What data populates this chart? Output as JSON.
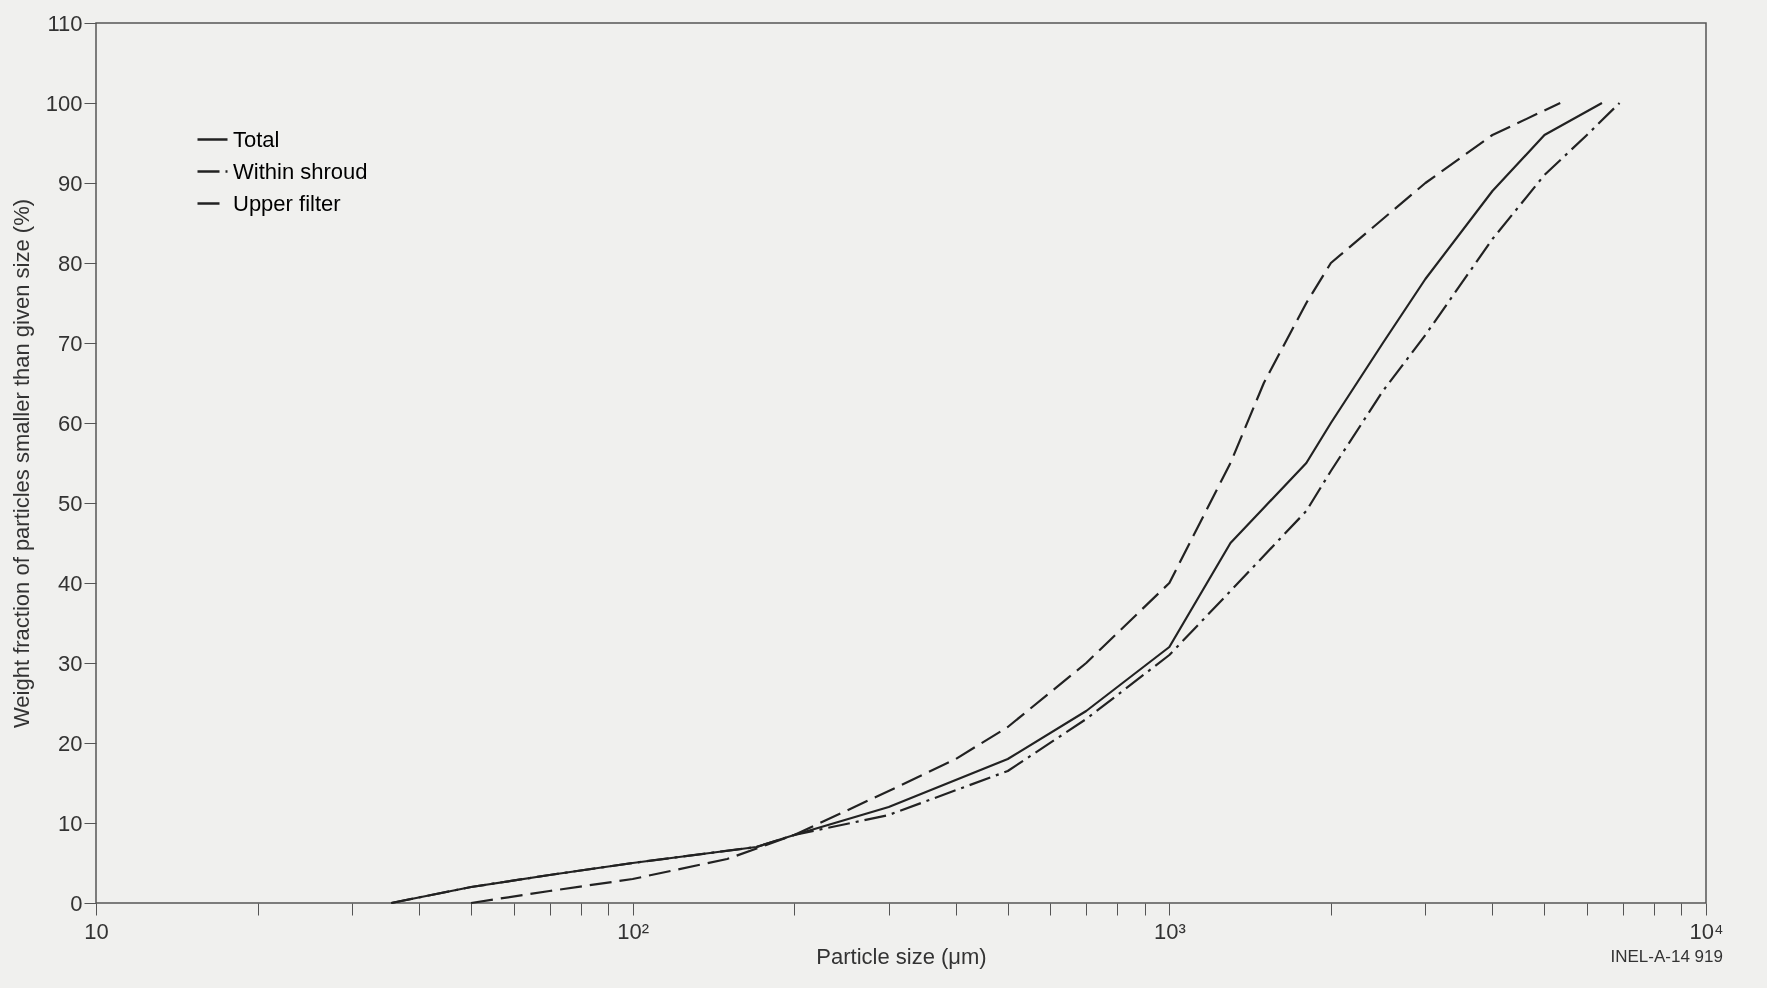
{
  "chart_data": {
    "type": "line",
    "xlabel": "Particle size (μm)",
    "ylabel": "Weight fraction of particles smaller than given size (%)",
    "log": "x",
    "xlim": [
      10,
      10000
    ],
    "ylim": [
      0,
      110
    ],
    "xticks": [
      10,
      {
        "value": 20,
        "label": null
      },
      {
        "value": 30,
        "label": null
      },
      {
        "value": 40,
        "label": null
      },
      {
        "value": 50,
        "label": null
      },
      {
        "value": 60,
        "label": null
      },
      {
        "value": 70,
        "label": null
      },
      {
        "value": 80,
        "label": null
      },
      {
        "value": 90,
        "label": null
      },
      {
        "value": 100,
        "label": "10²"
      },
      {
        "value": 200,
        "label": null
      },
      {
        "value": 300,
        "label": null
      },
      {
        "value": 400,
        "label": null
      },
      {
        "value": 500,
        "label": null
      },
      {
        "value": 600,
        "label": null
      },
      {
        "value": 700,
        "label": null
      },
      {
        "value": 800,
        "label": null
      },
      {
        "value": 900,
        "label": null
      },
      {
        "value": 1000,
        "label": "10³"
      },
      {
        "value": 2000,
        "label": null
      },
      {
        "value": 3000,
        "label": null
      },
      {
        "value": 4000,
        "label": null
      },
      {
        "value": 5000,
        "label": null
      },
      {
        "value": 6000,
        "label": null
      },
      {
        "value": 7000,
        "label": null
      },
      {
        "value": 8000,
        "label": null
      },
      {
        "value": 9000,
        "label": null
      },
      {
        "value": 10000,
        "label": "10⁴"
      }
    ],
    "yticks": [
      0,
      10,
      20,
      30,
      40,
      50,
      60,
      70,
      80,
      90,
      100,
      110
    ],
    "grid": false,
    "legend": "top left",
    "marker": "none",
    "annotations": [
      "INEL-A-14 919"
    ],
    "series": [
      {
        "name": "Total",
        "color": "#222222",
        "line_style": "solid",
        "x": [
          35.5,
          50,
          70,
          100,
          170,
          200,
          300,
          500,
          700,
          1000,
          1300,
          1800,
          2000,
          2500,
          3000,
          4000,
          5000,
          6400
        ],
        "values": [
          0,
          2,
          3.5,
          5,
          7,
          8.5,
          12,
          18,
          24,
          32,
          45,
          55,
          60,
          70,
          78,
          89,
          96,
          100
        ]
      },
      {
        "name": "Within shroud",
        "color": "#222222",
        "line_style": "dashdot",
        "x": [
          35.5,
          50,
          70,
          100,
          170,
          200,
          300,
          500,
          700,
          1000,
          1300,
          1800,
          2000,
          2500,
          3000,
          4000,
          5000,
          6000,
          6900
        ],
        "values": [
          0,
          2,
          3.5,
          5,
          7,
          8.5,
          11,
          16.5,
          23,
          31,
          39,
          49,
          54,
          64,
          71,
          83,
          91,
          96,
          100
        ]
      },
      {
        "name": "Upper filter",
        "color": "#222222",
        "line_style": "dashed",
        "x": [
          50,
          70,
          100,
          150,
          200,
          300,
          400,
          500,
          700,
          1000,
          1300,
          1500,
          1800,
          2000,
          3000,
          4000,
          5350
        ],
        "values": [
          0,
          1.5,
          3,
          5.5,
          8.5,
          14,
          18,
          22,
          30,
          40,
          55,
          65,
          75,
          80,
          90,
          96,
          100
        ]
      }
    ]
  }
}
